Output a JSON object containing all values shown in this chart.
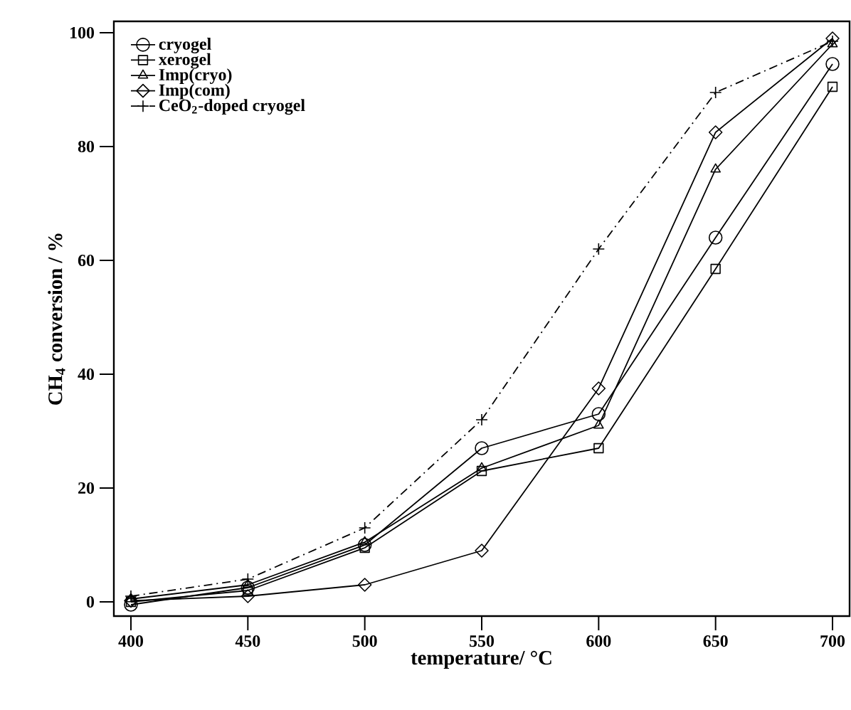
{
  "chart_data": {
    "type": "line",
    "xlabel": "temperature/ °C",
    "ylabel": "CH$_{4}$ conversion / %",
    "x": [
      400,
      450,
      500,
      550,
      600,
      650,
      700
    ],
    "series": [
      {
        "name": "cryogel",
        "color": "#000000",
        "marker": "circle",
        "line_style": "solid",
        "values": [
          -0.5,
          2.5,
          10,
          27,
          33,
          64,
          94.5
        ]
      },
      {
        "name": "xerogel",
        "color": "#000000",
        "marker": "square",
        "line_style": "solid",
        "values": [
          0,
          2,
          9.5,
          23,
          27,
          58.5,
          90.5
        ]
      },
      {
        "name": "Imp(cryo)",
        "color": "#000000",
        "marker": "triangle",
        "line_style": "solid",
        "values": [
          0.5,
          3,
          10.5,
          23.5,
          31,
          76,
          98
        ]
      },
      {
        "name": "Imp(com)",
        "color": "#000000",
        "marker": "diamond",
        "line_style": "solid",
        "values": [
          0.2,
          1,
          3,
          9,
          37.5,
          82.5,
          99
        ]
      },
      {
        "name": "CeO$_{2}$-doped cryogel",
        "color": "#000000",
        "marker": "cross",
        "line_style": "dashed",
        "values": [
          1,
          4,
          13,
          32,
          62,
          89.5,
          98.5
        ]
      }
    ],
    "xlim": [
      392.7,
      707.3
    ],
    "ylim": [
      -2.5,
      102
    ],
    "xticks": [
      400,
      450,
      500,
      550,
      600,
      650,
      700
    ],
    "yticks": [
      0,
      20,
      40,
      60,
      80,
      100
    ],
    "grid": false,
    "legend": "top left"
  }
}
